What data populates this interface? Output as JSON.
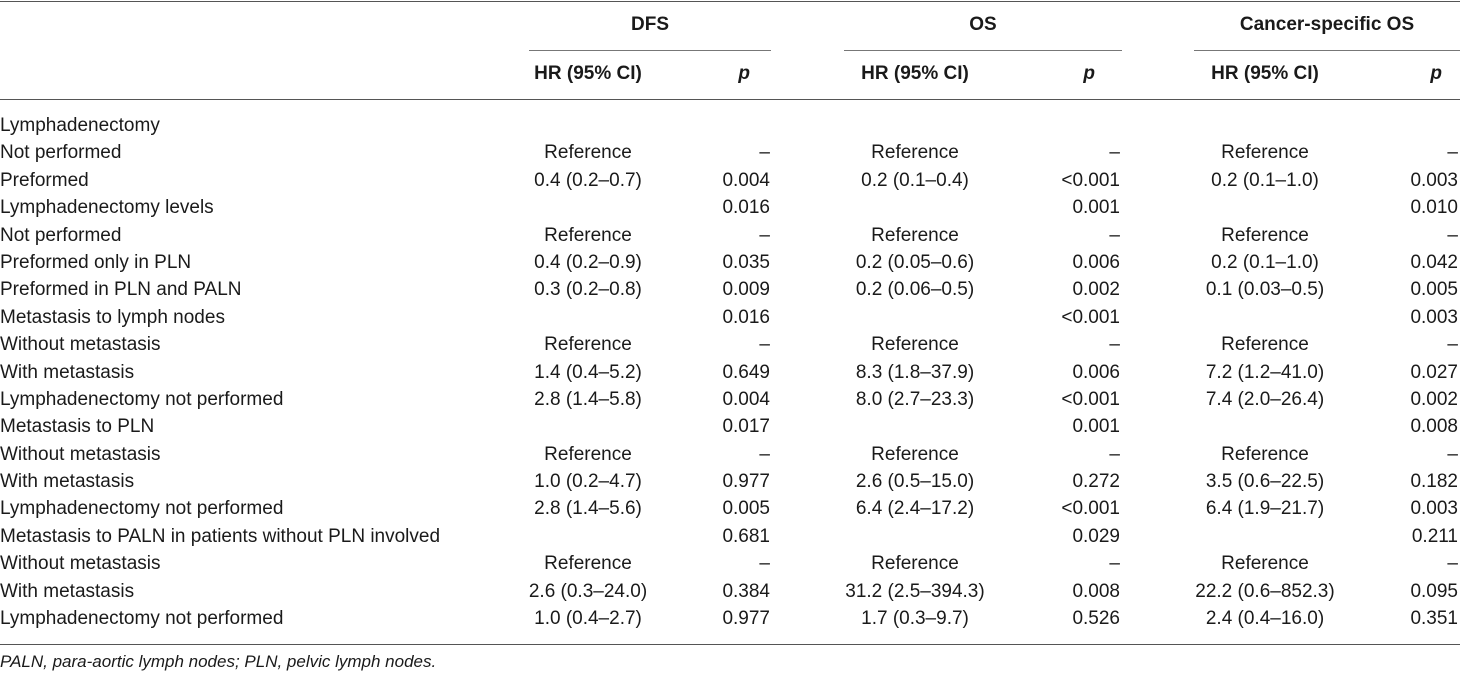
{
  "groups": [
    {
      "label": "DFS",
      "hr_header": "HR (95% CI)",
      "p_header": "p"
    },
    {
      "label": "OS",
      "hr_header": "HR (95% CI)",
      "p_header": "p"
    },
    {
      "label": "Cancer-specific OS",
      "hr_header": "HR (95% CI)",
      "p_header": "p"
    }
  ],
  "rows": [
    {
      "label": "Lymphadenectomy",
      "dfs_hr": "",
      "dfs_p": "",
      "os_hr": "",
      "os_p": "",
      "cs_hr": "",
      "cs_p": ""
    },
    {
      "label": "Not performed",
      "dfs_hr": "Reference",
      "dfs_p": "–",
      "os_hr": "Reference",
      "os_p": "–",
      "cs_hr": "Reference",
      "cs_p": "–"
    },
    {
      "label": "Preformed",
      "dfs_hr": "0.4 (0.2–0.7)",
      "dfs_p": "0.004",
      "os_hr": "0.2 (0.1–0.4)",
      "os_p": "<0.001",
      "cs_hr": "0.2 (0.1–1.0)",
      "cs_p": "0.003"
    },
    {
      "label": "Lymphadenectomy levels",
      "dfs_hr": "",
      "dfs_p": "0.016",
      "os_hr": "",
      "os_p": "0.001",
      "cs_hr": "",
      "cs_p": "0.010"
    },
    {
      "label": "Not performed",
      "dfs_hr": "Reference",
      "dfs_p": "–",
      "os_hr": "Reference",
      "os_p": "–",
      "cs_hr": "Reference",
      "cs_p": "–"
    },
    {
      "label": "Preformed only in PLN",
      "dfs_hr": "0.4 (0.2–0.9)",
      "dfs_p": "0.035",
      "os_hr": "0.2 (0.05–0.6)",
      "os_p": "0.006",
      "cs_hr": "0.2 (0.1–1.0)",
      "cs_p": "0.042"
    },
    {
      "label": "Preformed in PLN and PALN",
      "dfs_hr": "0.3 (0.2–0.8)",
      "dfs_p": "0.009",
      "os_hr": "0.2 (0.06–0.5)",
      "os_p": "0.002",
      "cs_hr": "0.1 (0.03–0.5)",
      "cs_p": "0.005"
    },
    {
      "label": "Metastasis to lymph nodes",
      "dfs_hr": "",
      "dfs_p": "0.016",
      "os_hr": "",
      "os_p": "<0.001",
      "cs_hr": "",
      "cs_p": "0.003"
    },
    {
      "label": "Without metastasis",
      "dfs_hr": "Reference",
      "dfs_p": "–",
      "os_hr": "Reference",
      "os_p": "–",
      "cs_hr": "Reference",
      "cs_p": "–"
    },
    {
      "label": "With metastasis",
      "dfs_hr": "1.4 (0.4–5.2)",
      "dfs_p": "0.649",
      "os_hr": "8.3 (1.8–37.9)",
      "os_p": "0.006",
      "cs_hr": "7.2 (1.2–41.0)",
      "cs_p": "0.027"
    },
    {
      "label": "Lymphadenectomy not performed",
      "dfs_hr": "2.8 (1.4–5.8)",
      "dfs_p": "0.004",
      "os_hr": "8.0 (2.7–23.3)",
      "os_p": "<0.001",
      "cs_hr": "7.4 (2.0–26.4)",
      "cs_p": "0.002"
    },
    {
      "label": "Metastasis to PLN",
      "dfs_hr": "",
      "dfs_p": "0.017",
      "os_hr": "",
      "os_p": "0.001",
      "cs_hr": "",
      "cs_p": "0.008"
    },
    {
      "label": "Without metastasis",
      "dfs_hr": "Reference",
      "dfs_p": "–",
      "os_hr": "Reference",
      "os_p": "–",
      "cs_hr": "Reference",
      "cs_p": "–"
    },
    {
      "label": "With metastasis",
      "dfs_hr": "1.0 (0.2–4.7)",
      "dfs_p": "0.977",
      "os_hr": "2.6 (0.5–15.0)",
      "os_p": "0.272",
      "cs_hr": "3.5 (0.6–22.5)",
      "cs_p": "0.182"
    },
    {
      "label": "Lymphadenectomy not performed",
      "dfs_hr": "2.8 (1.4–5.6)",
      "dfs_p": "0.005",
      "os_hr": "6.4 (2.4–17.2)",
      "os_p": "<0.001",
      "cs_hr": "6.4 (1.9–21.7)",
      "cs_p": "0.003"
    },
    {
      "label": "Metastasis to PALN in patients without PLN involved",
      "dfs_hr": "",
      "dfs_p": "0.681",
      "os_hr": "",
      "os_p": "0.029",
      "cs_hr": "",
      "cs_p": "0.211"
    },
    {
      "label": "Without metastasis",
      "dfs_hr": "Reference",
      "dfs_p": "–",
      "os_hr": "Reference",
      "os_p": "–",
      "cs_hr": "Reference",
      "cs_p": "–"
    },
    {
      "label": "With metastasis",
      "dfs_hr": "2.6 (0.3–24.0)",
      "dfs_p": "0.384",
      "os_hr": "31.2 (2.5–394.3)",
      "os_p": "0.008",
      "cs_hr": "22.2 (0.6–852.3)",
      "cs_p": "0.095"
    },
    {
      "label": "Lymphadenectomy not performed",
      "dfs_hr": "1.0 (0.4–2.7)",
      "dfs_p": "0.977",
      "os_hr": "1.7 (0.3–9.7)",
      "os_p": "0.526",
      "cs_hr": "2.4 (0.4–16.0)",
      "cs_p": "0.351"
    }
  ],
  "footnote": "PALN, para-aortic lymph nodes; PLN, pelvic lymph nodes."
}
